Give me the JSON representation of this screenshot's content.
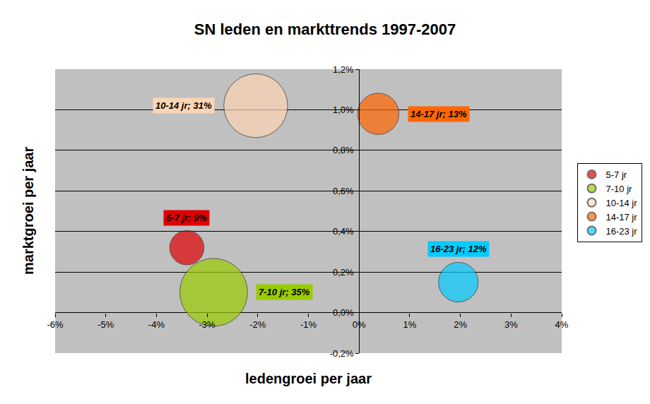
{
  "chart_data": {
    "type": "bubble",
    "title": "SN leden en markttrends 1997-2007",
    "x_label": "ledengroei per jaar",
    "y_label": "marktgroei per jaar",
    "xlim": [
      -6,
      4
    ],
    "xticks": [
      {
        "value": -6,
        "label": "-6%"
      },
      {
        "value": -5,
        "label": "-5%"
      },
      {
        "value": -4,
        "label": "-4%"
      },
      {
        "value": -3,
        "label": "-3%"
      },
      {
        "value": -2,
        "label": "-2%"
      },
      {
        "value": -1,
        "label": "-1%"
      },
      {
        "value": 0,
        "label": "0%"
      },
      {
        "value": 1,
        "label": "1%"
      },
      {
        "value": 2,
        "label": "2%"
      },
      {
        "value": 3,
        "label": "3%"
      },
      {
        "value": 4,
        "label": "4%"
      }
    ],
    "ylim": [
      -0.2,
      1.2
    ],
    "yticks": [
      {
        "value": -0.2,
        "label": "-0,2%"
      },
      {
        "value": 0,
        "label": "0,0%"
      },
      {
        "value": 0.2,
        "label": "0,2%"
      },
      {
        "value": 0.4,
        "label": "0,4%"
      },
      {
        "value": 0.6,
        "label": "0,6%"
      },
      {
        "value": 0.8,
        "label": "0,8%"
      },
      {
        "value": 1.0,
        "label": "1,0%"
      },
      {
        "value": 1.2,
        "label": "1,2%"
      }
    ],
    "grid": true,
    "legend": "right",
    "data_labels": true,
    "series": [
      {
        "name": "5-7 jr",
        "color": "#e00000",
        "x": [
          -3.4
        ],
        "y": [
          0.32
        ],
        "size": [
          9
        ],
        "value_labels": [
          "5-7 jr; 9%"
        ]
      },
      {
        "name": "7-10 jr",
        "color": "#99cc00",
        "x": [
          -2.87
        ],
        "y": [
          0.1
        ],
        "size": [
          35
        ],
        "value_labels": [
          "7-10 jr; 35%"
        ]
      },
      {
        "name": "10-14 jr",
        "color": "#fcd5b4",
        "x": [
          -2.04
        ],
        "y": [
          1.02
        ],
        "size": [
          31
        ],
        "value_labels": [
          "10-14 jr; 31%"
        ]
      },
      {
        "name": "14-17 jr",
        "color": "#ff6600",
        "x": [
          0.38
        ],
        "y": [
          0.98
        ],
        "size": [
          13
        ],
        "value_labels": [
          "14-17 jr; 13%"
        ]
      },
      {
        "name": "16-23 jr",
        "color": "#00ccff",
        "x": [
          1.96
        ],
        "y": [
          0.15
        ],
        "size": [
          12
        ],
        "value_labels": [
          "16-23 jr; 12%"
        ]
      }
    ]
  }
}
